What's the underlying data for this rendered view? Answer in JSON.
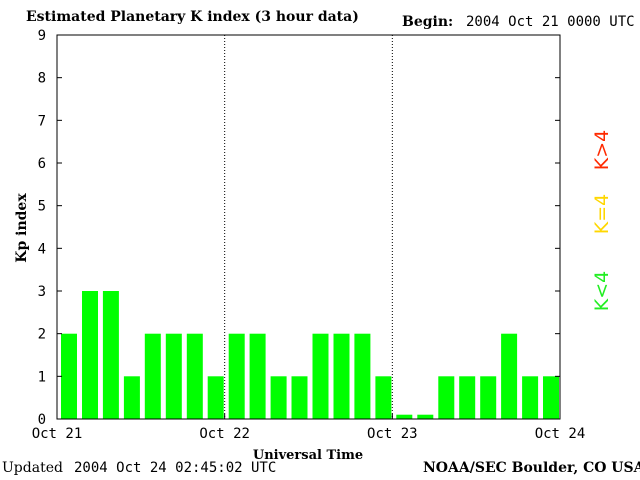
{
  "header": {
    "title": "Estimated Planetary K index (3 hour data)",
    "begin_label": "Begin:",
    "begin_value": "2004 Oct 21 0000 UTC"
  },
  "footer": {
    "updated_label": "Updated",
    "updated_value": "2004 Oct 24 02:45:02 UTC",
    "credit": "NOAA/SEC Boulder, CO USA"
  },
  "legend": {
    "high": "K>4",
    "high_color": "#ff2a00",
    "equal": "K=4",
    "equal_color": "#ffd700",
    "low": "K<4",
    "low_color": "#22ee22"
  },
  "chart_data": {
    "type": "bar",
    "title": "Estimated Planetary K index (3 hour data)",
    "xlabel": "Universal Time",
    "ylabel": "Kp index",
    "ylim": [
      0,
      9
    ],
    "yticks": [
      0,
      1,
      2,
      3,
      4,
      5,
      6,
      7,
      8,
      9
    ],
    "xticks": [
      "Oct 21",
      "Oct 22",
      "Oct 23",
      "Oct 24"
    ],
    "bar_color": "#00ff00",
    "values": [
      2,
      3,
      3,
      1,
      2,
      2,
      2,
      1,
      2,
      2,
      1,
      1,
      2,
      2,
      2,
      1,
      0.1,
      0.1,
      1,
      1,
      1,
      2,
      1,
      1
    ]
  }
}
